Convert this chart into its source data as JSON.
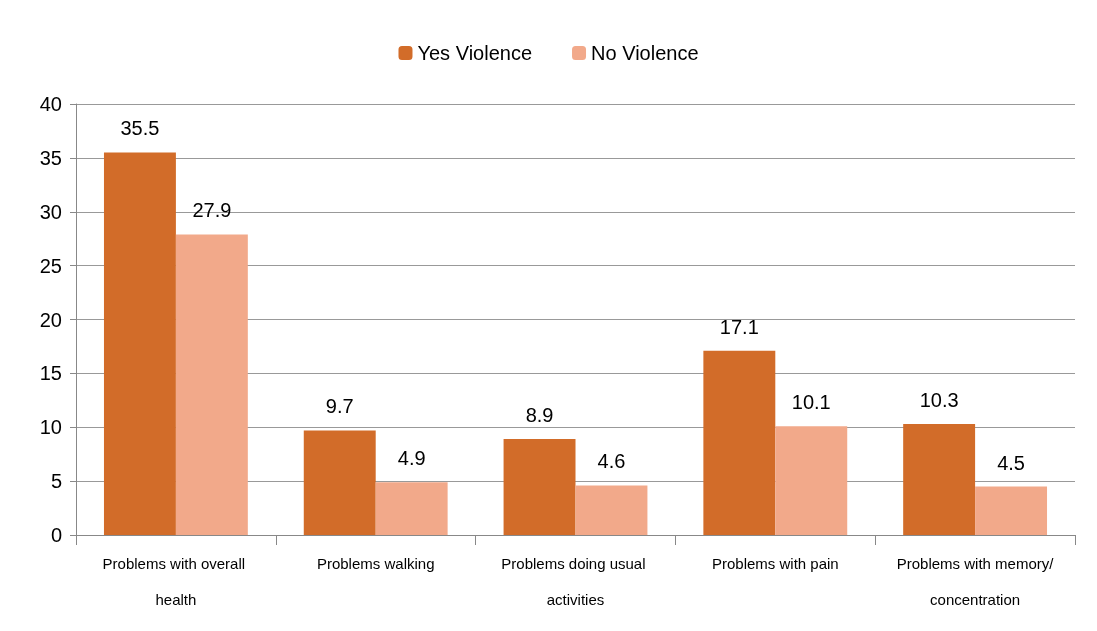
{
  "chart_data": {
    "type": "bar",
    "categories": [
      "Problems with overall health",
      "Problems walking",
      "Problems doing usual activities",
      "Problems with pain",
      "Problems with memory/concentration"
    ],
    "series": [
      {
        "name": "Yes Violence",
        "color": "#d26c29",
        "values": [
          35.5,
          9.7,
          8.9,
          17.1,
          10.3
        ]
      },
      {
        "name": "No Violence",
        "color": "#f2a98a",
        "values": [
          27.9,
          4.9,
          4.6,
          10.1,
          4.5
        ]
      }
    ],
    "ylim": [
      0,
      40
    ],
    "yticks": [
      0,
      5,
      10,
      15,
      20,
      25,
      30,
      35,
      40
    ],
    "grid": "y",
    "legend": "top",
    "data_labels": true
  }
}
